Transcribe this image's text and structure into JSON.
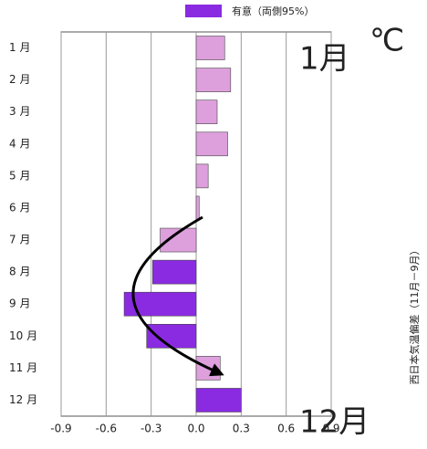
{
  "chart_data": {
    "type": "barh",
    "categories": [
      "1 月",
      "2 月",
      "3 月",
      "4 月",
      "5 月",
      "6 月",
      "7 月",
      "8 月",
      "9 月",
      "10 月",
      "11 月",
      "12 月"
    ],
    "series": [
      {
        "name": "有意（両側95%）",
        "color": "#8a2be2",
        "values": [
          0.19,
          0.23,
          0.14,
          0.21,
          0.08,
          0.02,
          -0.24,
          -0.29,
          -0.48,
          -0.33,
          0.16,
          0.3
        ]
      }
    ],
    "colors": [
      "#dda0dd",
      "#dda0dd",
      "#dda0dd",
      "#dda0dd",
      "#dda0dd",
      "#dda0dd",
      "#dda0dd",
      "#8a2be2",
      "#8a2be2",
      "#8a2be2",
      "#dda0dd",
      "#8a2be2"
    ],
    "xlim": [
      -0.9,
      0.9
    ],
    "xticks": [
      -0.9,
      -0.6,
      -0.3,
      {
        "value": 0,
        "label": "0.0"
      },
      0.3,
      0.6,
      0.9
    ],
    "grid": true,
    "annotations": [
      "1月",
      "℃",
      "12月",
      "西日本気温偏差（11月－9月）"
    ]
  }
}
